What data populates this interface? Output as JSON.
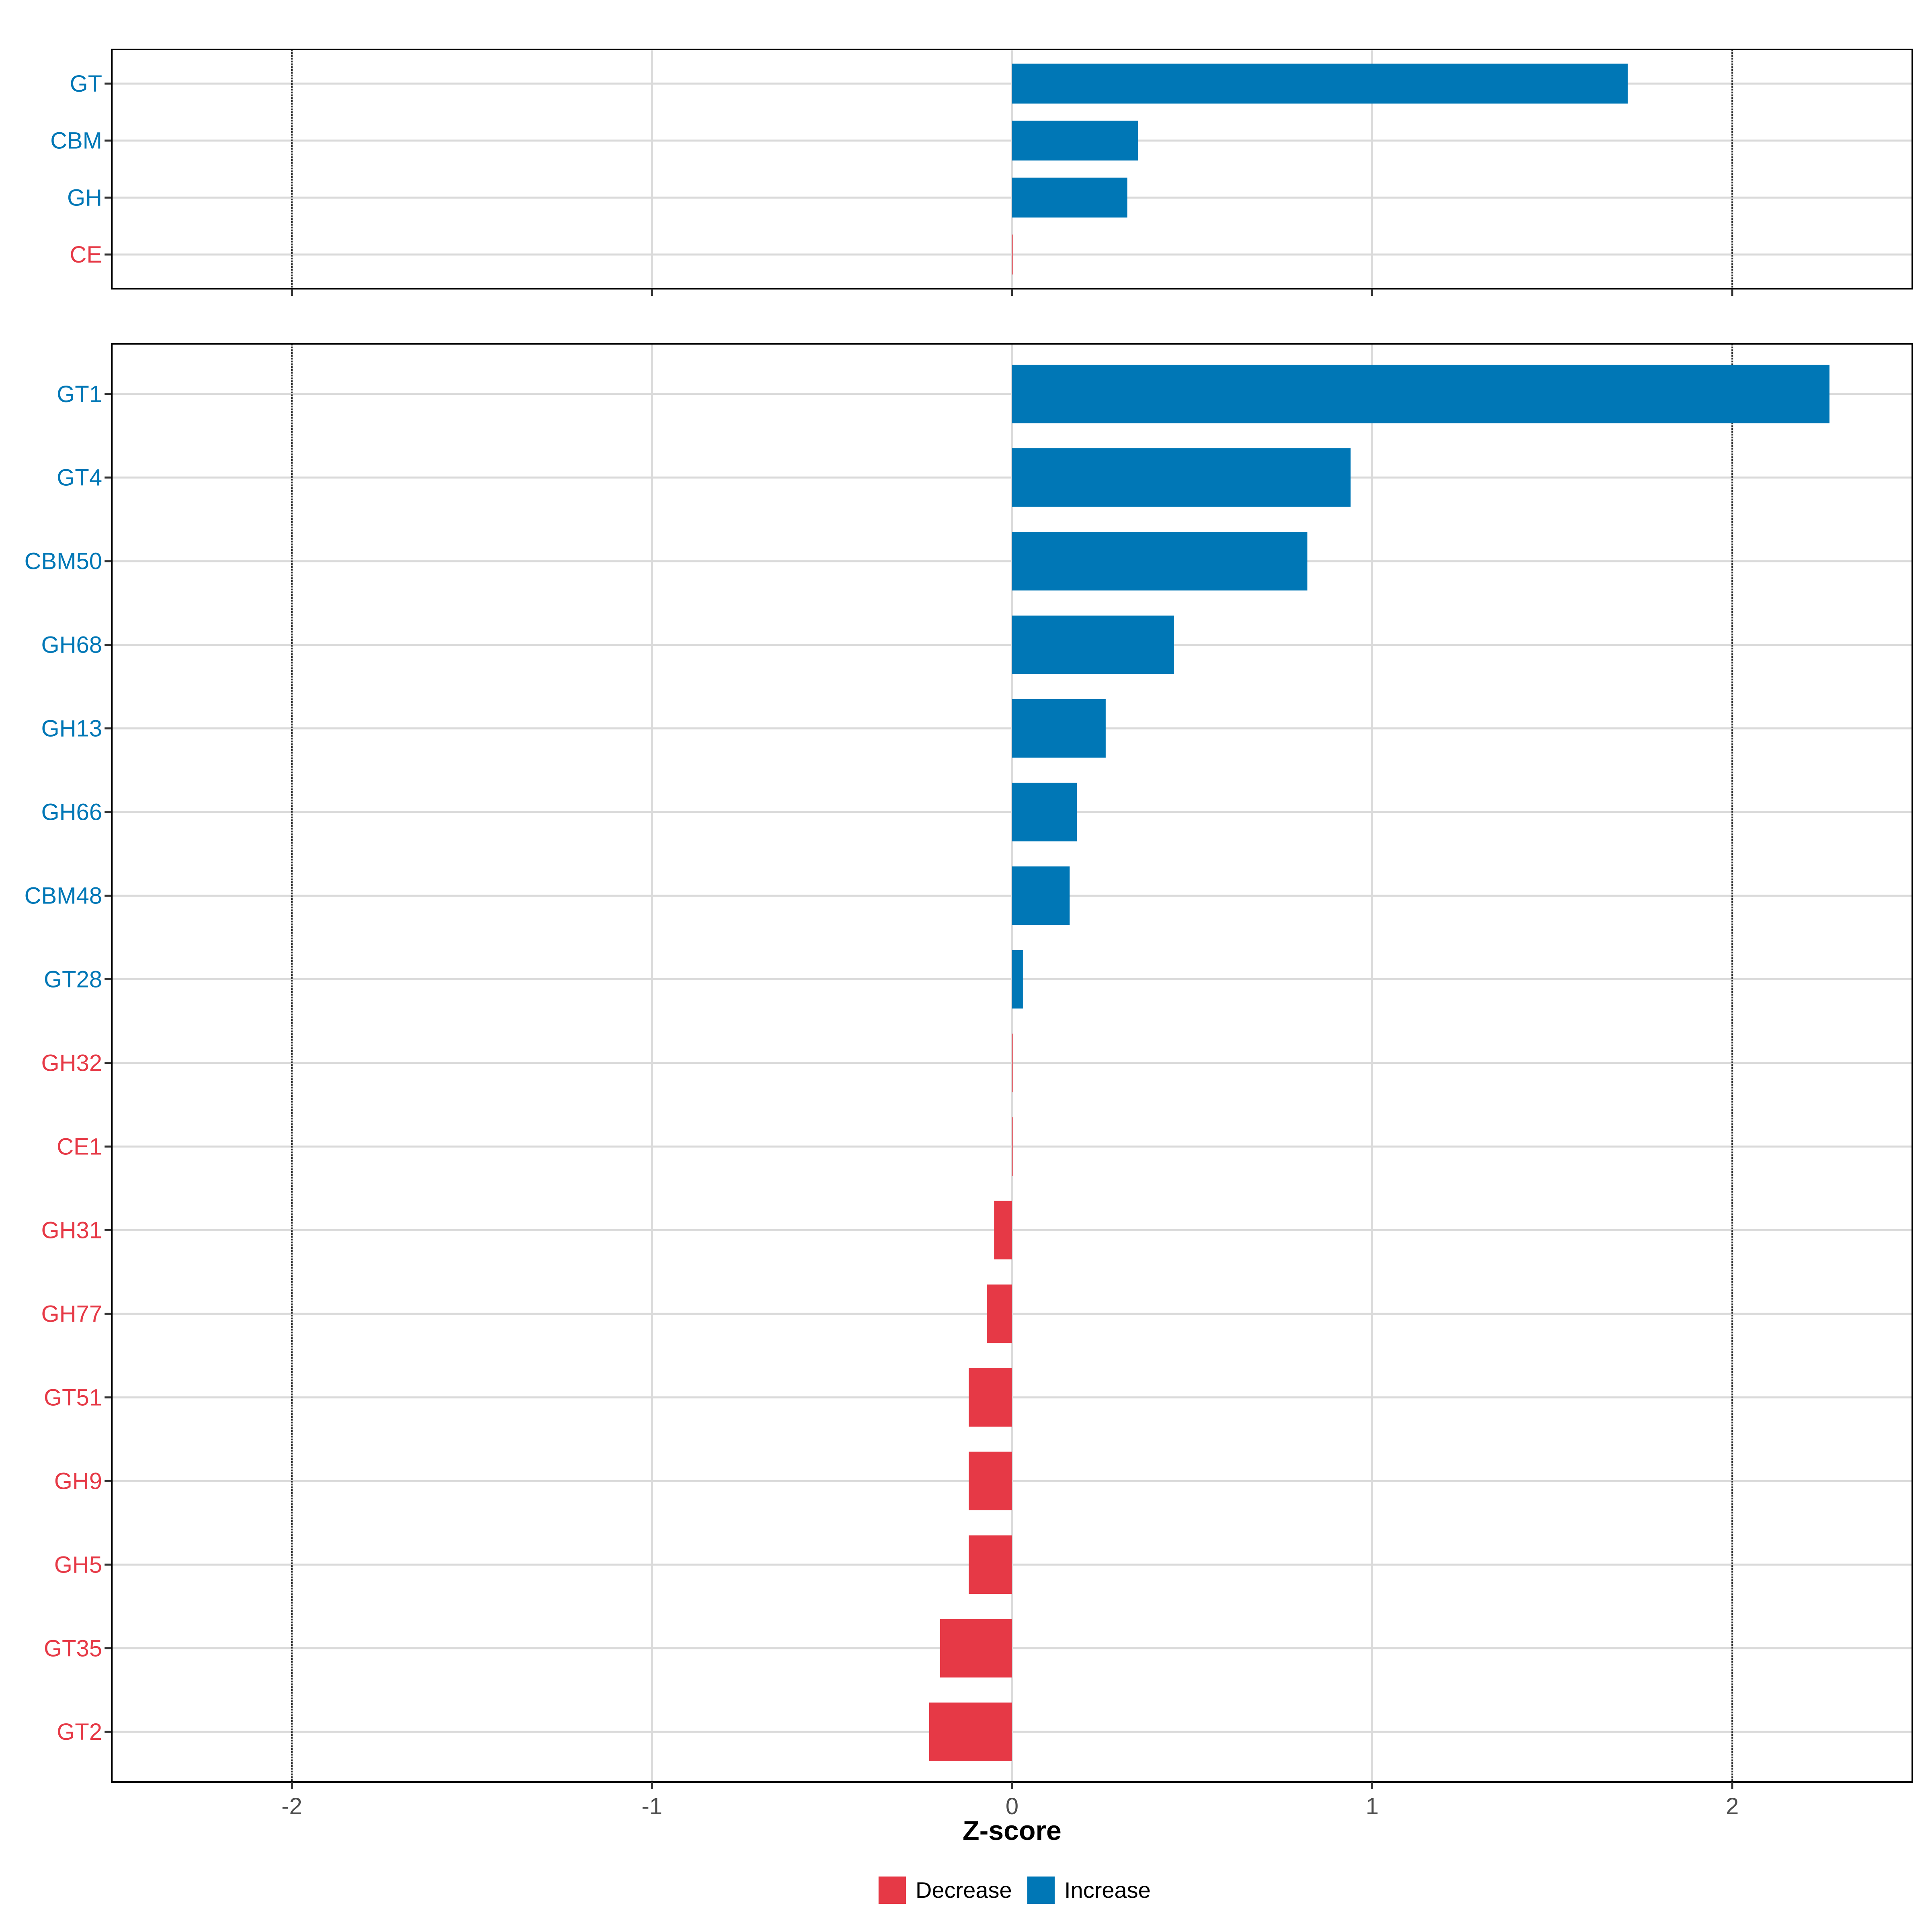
{
  "chart_data": [
    {
      "type": "bar",
      "orientation": "horizontal",
      "panel": "top",
      "categories": [
        "GT",
        "CBM",
        "GH",
        "CE"
      ],
      "values": [
        1.71,
        0.35,
        0.32,
        0.0
      ],
      "direction": [
        "Increase",
        "Increase",
        "Increase",
        "Decrease"
      ],
      "xlim": [
        -2.5,
        2.5
      ],
      "reference_lines": [
        -2,
        2
      ],
      "grid": true
    },
    {
      "type": "bar",
      "orientation": "horizontal",
      "panel": "bottom",
      "categories": [
        "GT1",
        "GT4",
        "CBM50",
        "GH68",
        "GH13",
        "GH66",
        "CBM48",
        "GT28",
        "GH32",
        "CE1",
        "GH31",
        "GH77",
        "GT51",
        "GH9",
        "GH5",
        "GT35",
        "GT2"
      ],
      "values": [
        2.27,
        0.94,
        0.82,
        0.45,
        0.26,
        0.18,
        0.16,
        0.03,
        0.0,
        0.0,
        -0.05,
        -0.07,
        -0.12,
        -0.12,
        -0.12,
        -0.2,
        -0.23
      ],
      "direction": [
        "Increase",
        "Increase",
        "Increase",
        "Increase",
        "Increase",
        "Increase",
        "Increase",
        "Increase",
        "Decrease",
        "Decrease",
        "Decrease",
        "Decrease",
        "Decrease",
        "Decrease",
        "Decrease",
        "Decrease",
        "Decrease"
      ],
      "xlim": [
        -2.5,
        2.5
      ],
      "reference_lines": [
        -2,
        2
      ],
      "grid": true
    }
  ],
  "x_ticks": [
    "-2",
    "-1",
    "0",
    "1",
    "2"
  ],
  "x_tick_values": [
    -2,
    -1,
    0,
    1,
    2
  ],
  "xlabel": "Z-score",
  "legend": {
    "position": "bottom",
    "items": [
      {
        "label": "Decrease",
        "color": "#E63946"
      },
      {
        "label": "Increase",
        "color": "#0077B6"
      }
    ]
  },
  "colors": {
    "Increase": "#0077B6",
    "Decrease": "#E63946",
    "grid": "#DADADA",
    "reference_line": "#333333",
    "panel_border": "#000000"
  }
}
